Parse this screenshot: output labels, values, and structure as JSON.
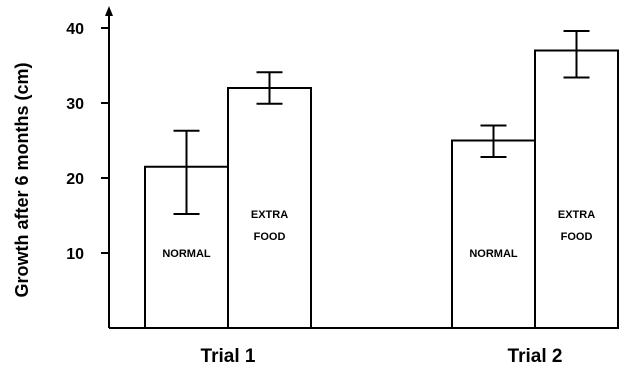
{
  "chart_data": {
    "type": "bar",
    "title": "",
    "xlabel": "",
    "ylabel": "Growth after 6 months (cm)",
    "ylim": [
      0,
      40
    ],
    "yticks": [
      10,
      20,
      30,
      40
    ],
    "categories": [
      "Trial 1",
      "Trial 2"
    ],
    "grid": false,
    "series": [
      {
        "label_lines": [
          "NORMAL"
        ],
        "values": [
          21.5,
          25
        ],
        "error_low": [
          15.2,
          22.8
        ],
        "error_high": [
          26.3,
          27
        ],
        "color": "#ffffff"
      },
      {
        "label_lines": [
          "EXTRA",
          "FOOD"
        ],
        "values": [
          32,
          37
        ],
        "error_low": [
          29.9,
          33.4
        ],
        "error_high": [
          34.1,
          39.6
        ],
        "color": "#ffffff"
      }
    ]
  }
}
